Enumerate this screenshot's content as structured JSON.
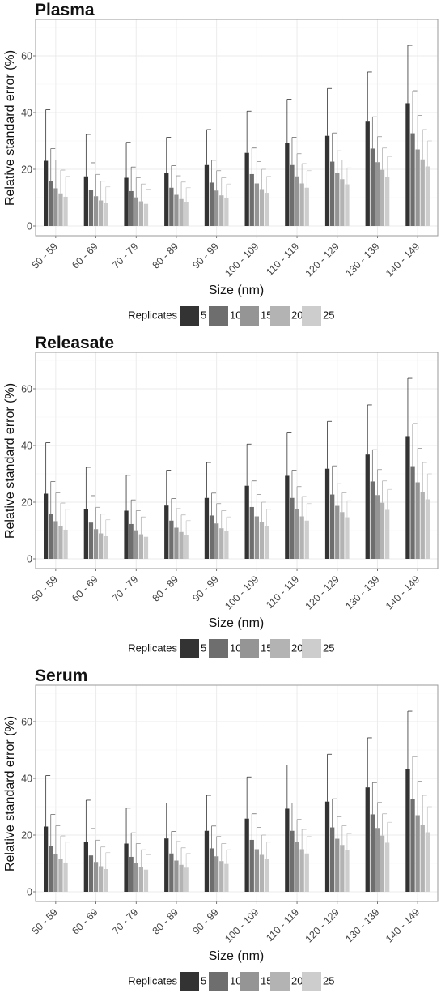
{
  "colors": {
    "series": [
      "#333333",
      "#6e6e6e",
      "#959595",
      "#b3b3b3",
      "#cdcdcd"
    ],
    "gridline": "#ebebeb",
    "panel_border": "#9a9a9a"
  },
  "chart_data": [
    {
      "type": "bar",
      "title": "Plasma",
      "xlabel": "Size (nm)",
      "ylabel": "Relative standard error (%)",
      "ylim": [
        0,
        72
      ],
      "yticks": [
        0,
        20,
        40,
        60
      ],
      "grid": true,
      "legend_title": "Replicates",
      "legend_position": "bottom",
      "categories": [
        "50 - 59",
        "60 - 69",
        "70 - 79",
        "80 - 89",
        "90 - 99",
        "100 - 109",
        "110 - 119",
        "120 - 129",
        "130 - 139",
        "140 - 149"
      ],
      "series": [
        {
          "name": "5",
          "values": [
            23.0,
            17.5,
            17.0,
            18.8,
            21.5,
            25.8,
            29.3,
            31.8,
            36.8,
            43.3
          ],
          "error": [
            41.0,
            32.3,
            29.5,
            31.3,
            34.0,
            40.5,
            44.7,
            48.5,
            54.3,
            63.7
          ]
        },
        {
          "name": "10",
          "values": [
            16.0,
            12.8,
            12.3,
            13.5,
            15.3,
            18.3,
            21.5,
            22.7,
            27.3,
            32.7
          ],
          "error": [
            27.3,
            22.3,
            20.8,
            21.3,
            23.2,
            27.5,
            31.3,
            32.8,
            38.5,
            47.7
          ]
        },
        {
          "name": "15",
          "values": [
            13.3,
            10.5,
            10.1,
            11.0,
            12.5,
            15.0,
            17.5,
            18.7,
            22.5,
            27.0
          ],
          "error": [
            23.3,
            18.2,
            17.0,
            17.7,
            19.5,
            22.7,
            25.5,
            26.5,
            31.5,
            39.0
          ]
        },
        {
          "name": "20",
          "values": [
            11.5,
            9.0,
            8.7,
            9.5,
            10.8,
            13.0,
            15.0,
            16.5,
            19.8,
            23.5
          ],
          "error": [
            19.7,
            15.8,
            14.8,
            15.5,
            17.0,
            20.0,
            22.0,
            23.3,
            27.5,
            34.0
          ]
        },
        {
          "name": "25",
          "values": [
            10.3,
            8.0,
            7.8,
            8.5,
            9.8,
            11.7,
            13.5,
            14.7,
            17.3,
            21.0
          ],
          "error": [
            17.5,
            13.8,
            13.0,
            13.5,
            14.8,
            17.5,
            19.5,
            20.5,
            24.5,
            30.0
          ]
        }
      ]
    },
    {
      "type": "bar",
      "title": "Releasate",
      "xlabel": "Size (nm)",
      "ylabel": "Relative standard error (%)",
      "ylim": [
        0,
        72
      ],
      "yticks": [
        0,
        20,
        40,
        60
      ],
      "grid": true,
      "legend_title": "Replicates",
      "legend_position": "bottom",
      "categories": [
        "50 - 59",
        "60 - 69",
        "70 - 79",
        "80 - 89",
        "90 - 99",
        "100 - 109",
        "110 - 119",
        "120 - 129",
        "130 - 139",
        "140 - 149"
      ],
      "series": [
        {
          "name": "5",
          "values": [
            23.0,
            17.5,
            17.0,
            18.8,
            21.5,
            25.8,
            29.3,
            31.8,
            36.8,
            43.3
          ],
          "error": [
            41.0,
            32.3,
            29.5,
            31.3,
            34.0,
            40.5,
            44.7,
            48.5,
            54.3,
            63.7
          ]
        },
        {
          "name": "10",
          "values": [
            16.0,
            12.8,
            12.3,
            13.5,
            15.3,
            18.3,
            21.5,
            22.7,
            27.3,
            32.7
          ],
          "error": [
            27.3,
            22.3,
            20.8,
            21.3,
            23.2,
            27.5,
            31.3,
            32.8,
            38.5,
            47.7
          ]
        },
        {
          "name": "15",
          "values": [
            13.3,
            10.5,
            10.1,
            11.0,
            12.5,
            15.0,
            17.5,
            18.7,
            22.5,
            27.0
          ],
          "error": [
            23.3,
            18.2,
            17.0,
            17.7,
            19.5,
            22.7,
            25.5,
            26.5,
            31.5,
            39.0
          ]
        },
        {
          "name": "20",
          "values": [
            11.5,
            9.0,
            8.7,
            9.5,
            10.8,
            13.0,
            15.0,
            16.5,
            19.8,
            23.5
          ],
          "error": [
            19.7,
            15.8,
            14.8,
            15.5,
            17.0,
            20.0,
            22.0,
            23.3,
            27.5,
            34.0
          ]
        },
        {
          "name": "25",
          "values": [
            10.3,
            8.0,
            7.8,
            8.5,
            9.8,
            11.7,
            13.5,
            14.7,
            17.3,
            21.0
          ],
          "error": [
            17.5,
            13.8,
            13.0,
            13.5,
            14.8,
            17.5,
            19.5,
            20.5,
            24.5,
            30.0
          ]
        }
      ]
    },
    {
      "type": "bar",
      "title": "Serum",
      "xlabel": "Size (nm)",
      "ylabel": "Relative standard error (%)",
      "ylim": [
        0,
        72
      ],
      "yticks": [
        0,
        20,
        40,
        60
      ],
      "grid": true,
      "legend_title": "Replicates",
      "legend_position": "bottom",
      "categories": [
        "50 - 59",
        "60 - 69",
        "70 - 79",
        "80 - 89",
        "90 - 99",
        "100 - 109",
        "110 - 119",
        "120 - 129",
        "130 - 139",
        "140 - 149"
      ],
      "series": [
        {
          "name": "5",
          "values": [
            23.0,
            17.5,
            17.0,
            18.8,
            21.5,
            25.8,
            29.3,
            31.8,
            36.8,
            43.3
          ],
          "error": [
            41.0,
            32.3,
            29.5,
            31.3,
            34.0,
            40.5,
            44.7,
            48.5,
            54.3,
            63.7
          ]
        },
        {
          "name": "10",
          "values": [
            16.0,
            12.8,
            12.3,
            13.5,
            15.3,
            18.3,
            21.5,
            22.7,
            27.3,
            32.7
          ],
          "error": [
            27.3,
            22.3,
            20.8,
            21.3,
            23.2,
            27.5,
            31.3,
            32.8,
            38.5,
            47.7
          ]
        },
        {
          "name": "15",
          "values": [
            13.3,
            10.5,
            10.1,
            11.0,
            12.5,
            15.0,
            17.5,
            18.7,
            22.5,
            27.0
          ],
          "error": [
            23.3,
            18.2,
            17.0,
            17.7,
            19.5,
            22.7,
            25.5,
            26.5,
            31.5,
            39.0
          ]
        },
        {
          "name": "20",
          "values": [
            11.5,
            9.0,
            8.7,
            9.5,
            10.8,
            13.0,
            15.0,
            16.5,
            19.8,
            23.5
          ],
          "error": [
            19.7,
            15.8,
            14.8,
            15.5,
            17.0,
            20.0,
            22.0,
            23.3,
            27.5,
            34.0
          ]
        },
        {
          "name": "25",
          "values": [
            10.3,
            8.0,
            7.8,
            8.5,
            9.8,
            11.7,
            13.5,
            14.7,
            17.3,
            21.0
          ],
          "error": [
            17.5,
            13.8,
            13.0,
            13.5,
            14.8,
            17.5,
            19.5,
            20.5,
            24.5,
            30.0
          ]
        }
      ]
    }
  ]
}
